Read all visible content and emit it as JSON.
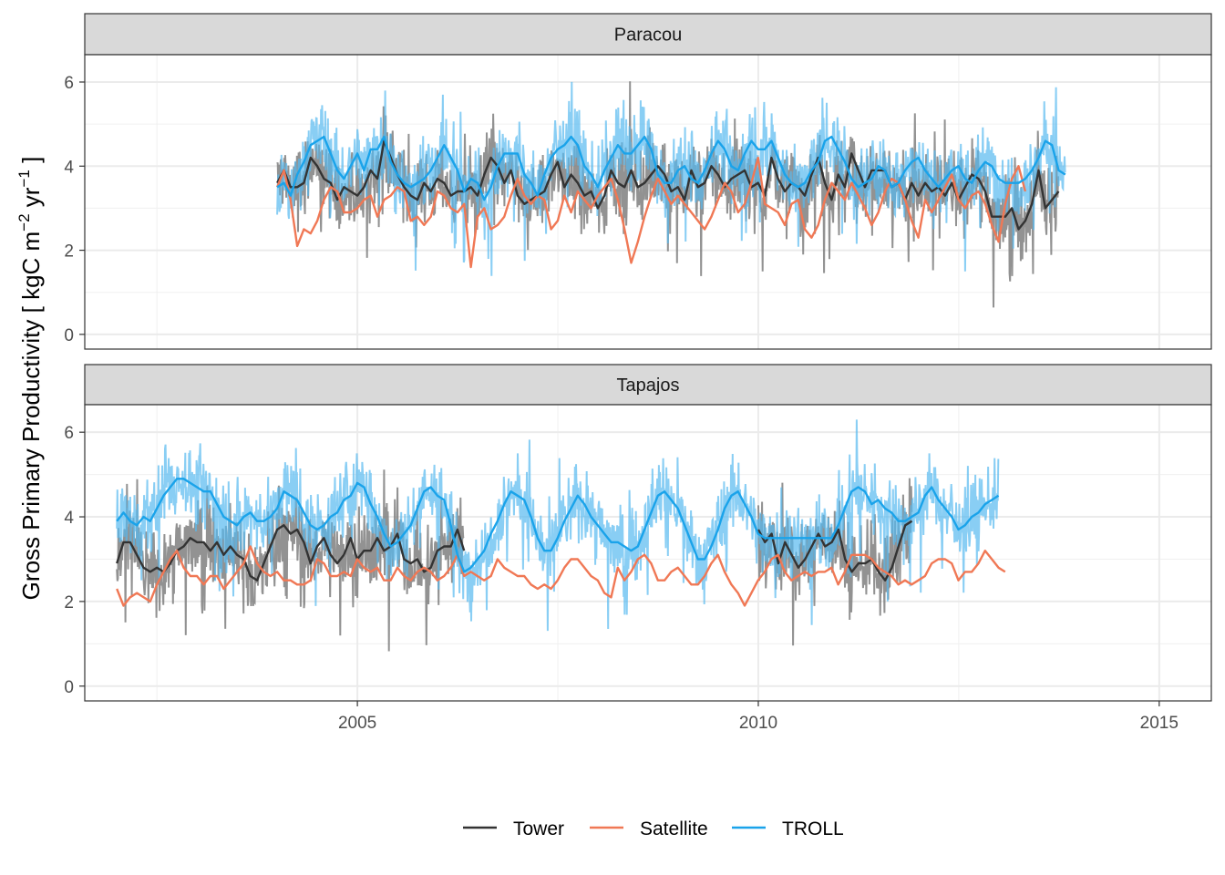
{
  "chart_data": {
    "type": "line",
    "ylabel": "Gross Primary Productivity [ kgC m⁻² yr⁻¹ ]",
    "ylabel_parts": {
      "prefix": "Gross Primary Productivity [ kgC m",
      "sup1": "−2",
      "mid": " yr",
      "sup2": "−1",
      "suffix": " ]"
    },
    "xlabel": "",
    "x_ticks": [
      "2005",
      "2010",
      "2015"
    ],
    "y_ticks": [
      "0",
      "2",
      "4",
      "6"
    ],
    "x_range": [
      2001.6,
      2015.65
    ],
    "y_range": [
      -0.35,
      6.65
    ],
    "grid": true,
    "legend_position": "bottom",
    "legend": [
      {
        "name": "Tower",
        "color": "#333333"
      },
      {
        "name": "Satellite",
        "color": "#f07855"
      },
      {
        "name": "TROLL",
        "color": "#1aa3ea"
      }
    ],
    "colors": {
      "tower_raw": "#7f7f7f",
      "troll_raw": "#57b9ef",
      "tower": "#333333",
      "satellite": "#f07855",
      "troll": "#1aa3ea"
    },
    "panels": [
      {
        "title": "Paracou",
        "tower_monthly": {
          "start": 2004.0,
          "step": 0.0833,
          "values": [
            3.6,
            3.9,
            3.5,
            3.5,
            3.6,
            4.2,
            4.0,
            3.7,
            3.6,
            3.2,
            3.5,
            3.4,
            3.3,
            3.5,
            3.9,
            3.7,
            4.6,
            4.2,
            3.8,
            3.5,
            3.3,
            3.2,
            3.6,
            3.4,
            3.7,
            3.6,
            3.3,
            3.4,
            3.4,
            3.5,
            3.3,
            3.8,
            4.2,
            4.0,
            3.6,
            3.9,
            3.3,
            3.1,
            3.2,
            3.3,
            3.4,
            3.8,
            4.1,
            3.5,
            3.8,
            3.6,
            3.3,
            3.4,
            3.0,
            3.3,
            3.9,
            3.6,
            3.5,
            3.9,
            3.5,
            3.6,
            3.8,
            4.0,
            3.8,
            3.4,
            3.5,
            3.2,
            3.9,
            3.5,
            3.6,
            4.0,
            3.8,
            3.5,
            3.7,
            3.8,
            3.9,
            3.5,
            3.6,
            3.3,
            4.2,
            3.7,
            3.4,
            3.6,
            3.5,
            3.3,
            3.8,
            4.2,
            3.6,
            3.2,
            3.8,
            3.5,
            4.3,
            3.9,
            3.5,
            3.9,
            3.9,
            3.9,
            3.5,
            3.6,
            3.2,
            3.6,
            3.3,
            3.6,
            3.4,
            3.5,
            3.3,
            3.6,
            3.2,
            3.5,
            3.8,
            3.7,
            3.4,
            2.8,
            2.8,
            2.8,
            3.0,
            2.5,
            2.7,
            3.1,
            3.9,
            3.0,
            3.2,
            3.4
          ]
        },
        "satellite_monthly": {
          "start": 2004.0,
          "step": 0.0833,
          "values": [
            3.5,
            3.9,
            3.2,
            2.1,
            2.5,
            2.4,
            2.7,
            3.2,
            3.5,
            3.4,
            2.9,
            2.9,
            3.0,
            3.2,
            3.3,
            2.8,
            3.2,
            3.3,
            3.5,
            3.4,
            2.7,
            2.8,
            2.6,
            2.8,
            3.4,
            3.3,
            3.0,
            2.9,
            3.1,
            1.6,
            2.8,
            3.0,
            2.5,
            2.6,
            2.8,
            3.3,
            3.7,
            3.3,
            3.1,
            3.3,
            3.2,
            2.5,
            2.7,
            3.3,
            2.9,
            3.4,
            3.2,
            3.0,
            3.3,
            3.5,
            3.7,
            3.2,
            2.5,
            1.7,
            2.2,
            2.8,
            3.3,
            3.7,
            3.4,
            3.1,
            3.3,
            3.1,
            2.9,
            2.7,
            2.5,
            2.8,
            3.2,
            3.6,
            3.4,
            2.9,
            3.1,
            3.6,
            4.2,
            3.1,
            3.0,
            2.9,
            2.6,
            3.1,
            3.2,
            2.5,
            2.3,
            2.6,
            3.2,
            3.6,
            3.4,
            3.2,
            3.6,
            3.3,
            3.0,
            2.6,
            2.9,
            3.4,
            3.7,
            3.6,
            3.2,
            2.7,
            2.3,
            3.2,
            2.9,
            3.2,
            3.5,
            3.8,
            3.2,
            3.0,
            3.3,
            3.4,
            3.1,
            2.6,
            2.2,
            3.1,
            3.7,
            4.0,
            3.4
          ]
        },
        "troll_monthly": {
          "start": 2004.0,
          "step": 0.0833,
          "values": [
            3.5,
            3.6,
            3.3,
            3.8,
            4.1,
            4.5,
            4.6,
            4.7,
            4.3,
            3.9,
            3.7,
            4.0,
            4.3,
            3.9,
            4.4,
            4.4,
            4.7,
            4.1,
            3.8,
            3.6,
            3.5,
            3.6,
            3.7,
            3.9,
            4.2,
            4.5,
            4.2,
            3.9,
            3.4,
            3.7,
            3.6,
            3.2,
            3.5,
            4.0,
            4.3,
            4.3,
            4.3,
            3.8,
            3.6,
            3.3,
            3.8,
            4.2,
            4.4,
            4.5,
            4.7,
            4.5,
            4.0,
            3.8,
            3.5,
            3.9,
            4.2,
            4.5,
            4.3,
            4.3,
            4.5,
            4.7,
            4.4,
            3.8,
            3.6,
            3.6,
            3.9,
            4.0,
            3.7,
            3.6,
            3.9,
            4.3,
            4.6,
            4.4,
            4.0,
            3.9,
            4.3,
            4.6,
            4.4,
            4.4,
            4.6,
            4.2,
            3.8,
            3.6,
            3.5,
            3.6,
            3.9,
            4.1,
            4.6,
            4.7,
            4.4,
            4.1,
            3.7,
            3.5,
            3.6,
            3.7,
            4.0,
            3.9,
            3.5,
            3.6,
            3.9,
            4.1,
            4.2,
            3.9,
            3.7,
            3.5,
            3.7,
            3.9,
            4.0,
            3.7,
            3.6,
            3.9,
            4.1,
            4.0,
            3.7,
            3.6,
            3.6,
            3.6,
            3.7,
            3.9,
            4.2,
            4.6,
            4.5,
            3.9,
            3.8
          ]
        }
      },
      {
        "title": "Tapajos",
        "tower_monthly": {
          "segments": [
            {
              "start": 2002.0,
              "step": 0.0833,
              "values": [
                2.9,
                3.4,
                3.4,
                3.1,
                2.8,
                2.7,
                2.8,
                2.7,
                2.9,
                3.2,
                3.3,
                3.5,
                3.4,
                3.4,
                3.2,
                3.4,
                3.1,
                3.3,
                3.1,
                3.0,
                2.6,
                2.5,
                2.9,
                3.3,
                3.7,
                3.8,
                3.6,
                3.7,
                3.4,
                2.9,
                3.3,
                3.5,
                3.1,
                2.9,
                3.1,
                3.5,
                3.0,
                3.2,
                3.2,
                3.5,
                3.2,
                3.3,
                3.6,
                3.0,
                2.9,
                3.0,
                2.7,
                2.8,
                3.2,
                3.3,
                3.3,
                3.7,
                3.2
              ]
            },
            {
              "start": 2010.0,
              "step": 0.0833,
              "values": [
                3.7,
                3.4,
                3.6,
                2.9,
                3.4,
                3.1,
                2.8,
                3.0,
                3.3,
                3.6,
                3.3,
                3.4,
                3.7,
                3.0,
                2.7,
                2.9,
                2.9,
                3.0,
                2.7,
                2.5,
                2.8,
                3.3,
                3.8,
                3.9
              ]
            }
          ]
        },
        "satellite_monthly": {
          "start": 2002.0,
          "step": 0.0833,
          "values": [
            2.3,
            1.9,
            2.1,
            2.2,
            2.1,
            2.0,
            2.4,
            2.7,
            3.0,
            3.2,
            2.8,
            2.6,
            2.6,
            2.4,
            2.6,
            2.6,
            2.3,
            2.5,
            2.7,
            2.9,
            3.3,
            2.9,
            2.7,
            2.6,
            2.7,
            2.5,
            2.5,
            2.4,
            2.4,
            2.5,
            3.0,
            2.9,
            2.6,
            2.6,
            2.7,
            2.6,
            3.0,
            2.8,
            2.7,
            2.8,
            2.5,
            2.5,
            2.8,
            2.6,
            2.5,
            2.7,
            2.8,
            2.7,
            2.5,
            2.6,
            2.8,
            3.1,
            2.6,
            2.7,
            2.6,
            2.5,
            2.6,
            3.0,
            2.8,
            2.7,
            2.6,
            2.6,
            2.4,
            2.3,
            2.4,
            2.3,
            2.5,
            2.8,
            3.0,
            3.0,
            2.8,
            2.6,
            2.5,
            2.2,
            2.1,
            2.8,
            2.5,
            2.7,
            3.0,
            3.1,
            2.9,
            2.5,
            2.5,
            2.7,
            2.8,
            2.6,
            2.4,
            2.4,
            2.6,
            2.9,
            3.1,
            2.7,
            2.4,
            2.2,
            1.9,
            2.2,
            2.5,
            2.7,
            3.0,
            3.1,
            2.7,
            2.5,
            2.6,
            2.7,
            2.6,
            2.7,
            2.7,
            2.8,
            2.4,
            2.7,
            3.1,
            3.1,
            3.1,
            3.0,
            2.8,
            2.7,
            2.6,
            2.4,
            2.5,
            2.4,
            2.5,
            2.6,
            2.9,
            3.0,
            3.0,
            2.9,
            2.5,
            2.7,
            2.7,
            2.9,
            3.2,
            3.0,
            2.8,
            2.7
          ]
        },
        "troll_monthly": {
          "start": 2002.0,
          "step": 0.0833,
          "values": [
            3.9,
            4.1,
            3.9,
            3.8,
            4.0,
            3.9,
            4.2,
            4.5,
            4.7,
            4.9,
            4.9,
            4.8,
            4.7,
            4.6,
            4.6,
            4.3,
            4.0,
            3.9,
            3.8,
            4.0,
            4.1,
            3.9,
            3.9,
            4.0,
            4.2,
            4.6,
            4.5,
            4.4,
            4.1,
            3.8,
            3.7,
            3.8,
            4.0,
            4.1,
            4.4,
            4.5,
            4.8,
            4.7,
            4.3,
            4.0,
            3.6,
            3.3,
            3.4,
            3.6,
            3.8,
            4.2,
            4.6,
            4.7,
            4.5,
            4.4,
            3.8,
            3.1,
            2.7,
            2.8,
            3.0,
            3.2,
            3.6,
            3.9,
            4.3,
            4.6,
            4.5,
            4.4,
            4.0,
            3.5,
            3.2,
            3.2,
            3.5,
            3.9,
            4.2,
            4.5,
            4.3,
            4.0,
            3.8,
            3.6,
            3.4,
            3.4,
            3.3,
            3.2,
            3.3,
            3.7,
            4.1,
            4.5,
            4.6,
            4.4,
            4.2,
            3.8,
            3.4,
            3.0,
            3.0,
            3.3,
            3.7,
            4.2,
            4.5,
            4.6,
            4.3,
            4.0,
            3.6,
            3.5,
            3.5,
            3.5,
            3.5,
            3.5,
            3.5,
            3.5,
            3.5,
            3.5,
            3.5,
            3.5,
            3.8,
            4.2,
            4.6,
            4.7,
            4.6,
            4.3,
            4.4,
            4.2,
            4.1,
            3.9,
            3.9,
            4.0,
            4.1,
            4.5,
            4.7,
            4.4,
            4.2,
            4.0,
            3.7,
            3.8,
            4.0,
            4.1,
            4.3,
            4.4,
            4.5
          ]
        }
      }
    ]
  }
}
